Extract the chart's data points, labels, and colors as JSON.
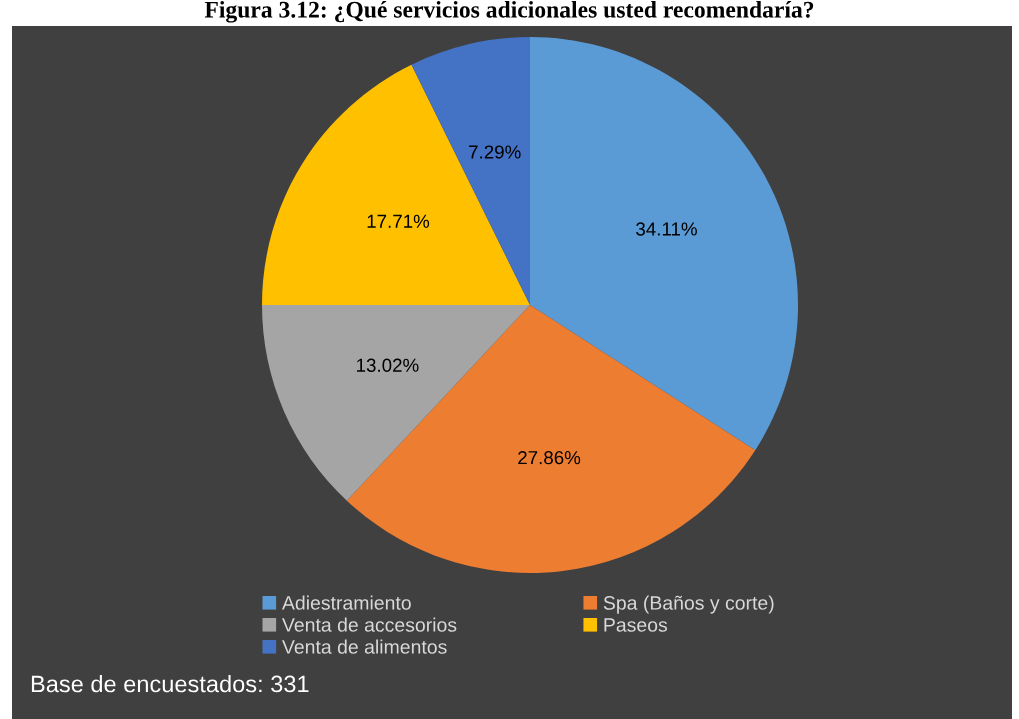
{
  "chart_data": {
    "type": "pie",
    "title": "Figura 3.12: ¿Qué servicios adicionales usted recomendaría?",
    "categories": [
      "Adiestramiento",
      "Spa (Baños y corte)",
      "Venta de accesorios",
      "Paseos",
      "Venta de alimentos"
    ],
    "values": [
      34.11,
      27.86,
      13.02,
      17.71,
      7.29
    ],
    "colors": [
      "#5b9bd5",
      "#ed7d31",
      "#a5a5a5",
      "#ffc000",
      "#4472c4"
    ],
    "value_labels": [
      "34.11%",
      "27.86%",
      "13.02%",
      "17.71%",
      "7.29%"
    ],
    "legend": "bottom",
    "annotations": [
      "Base de encuestados: 331"
    ]
  }
}
